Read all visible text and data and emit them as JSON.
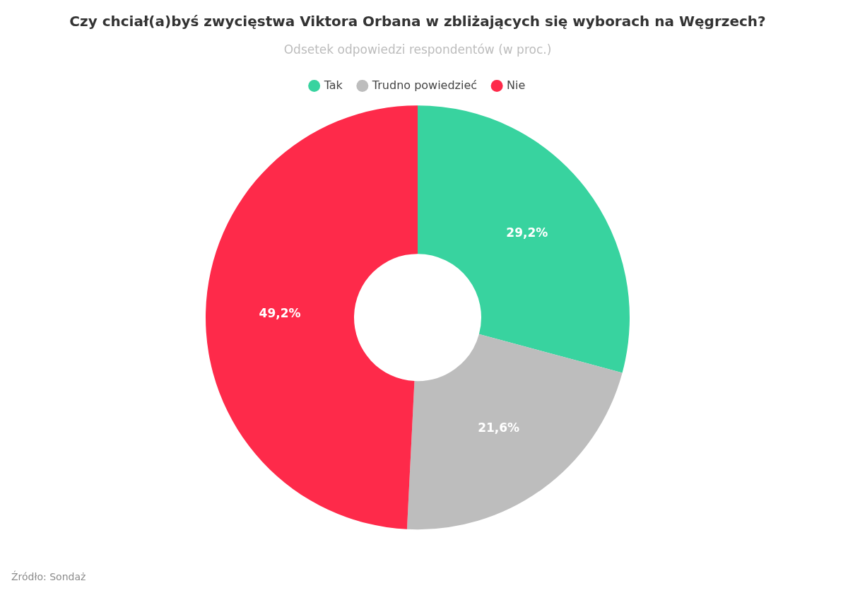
{
  "chart_data": {
    "type": "donut",
    "title": "Czy chciał(a)byś zwycięstwa Viktora Orbana w zbliżających się wyborach na Węgrzech?",
    "subtitle": "Odsetek odpowiedzi respondentów (w proc.)",
    "categories": [
      "Tak",
      "Trudno powiedzieć",
      "Nie"
    ],
    "values": [
      29.2,
      21.6,
      49.2
    ],
    "value_labels": [
      "29,2%",
      "21,6%",
      "49,2%"
    ],
    "colors": [
      "#38d39f",
      "#bdbdbd",
      "#fe2a4a"
    ],
    "legend": "top",
    "annotations": [
      "Źródło: Sondaż"
    ]
  }
}
